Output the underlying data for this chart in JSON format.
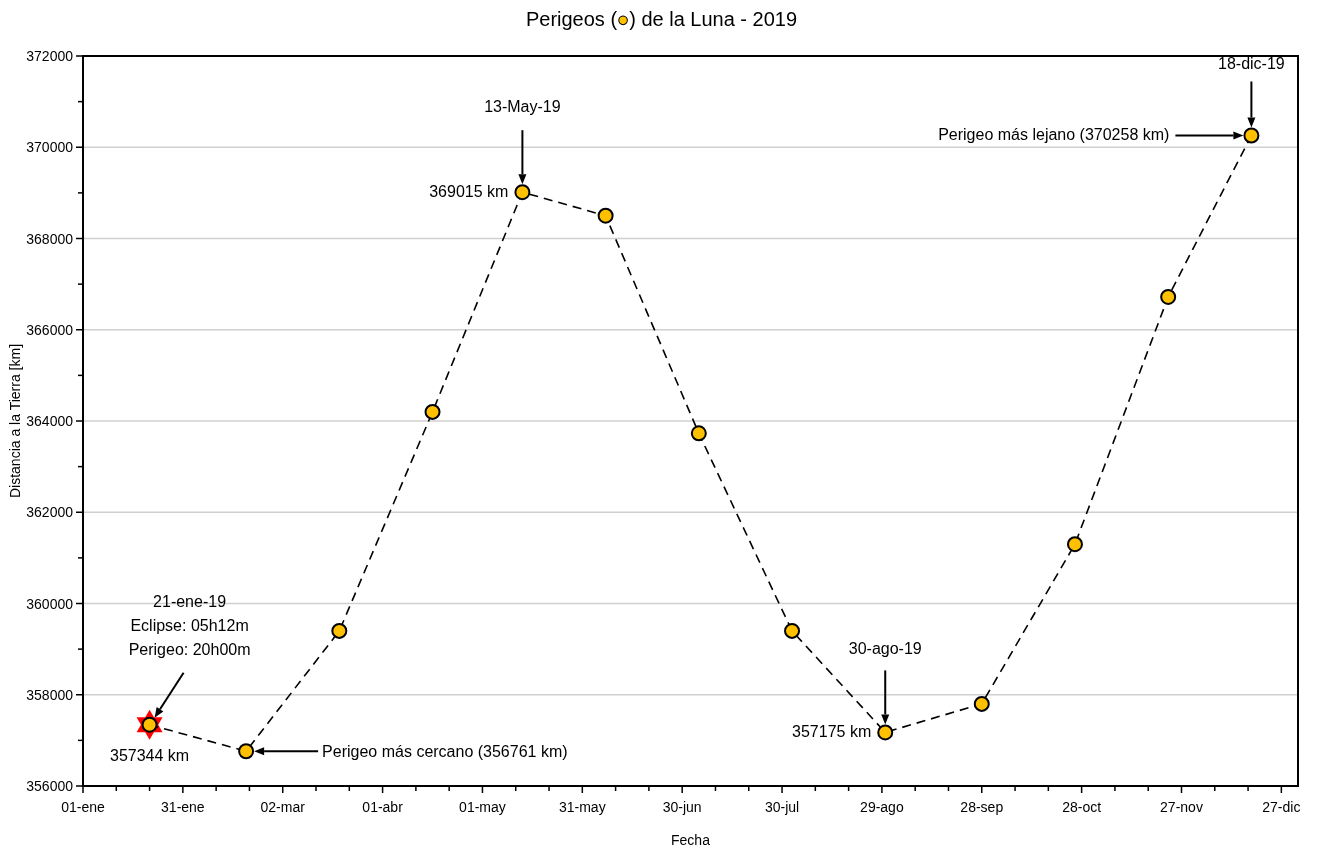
{
  "chart_data": {
    "type": "line",
    "title": "Perigeos (●) de la Luna - 2019",
    "xlabel": "Fecha",
    "ylabel": "Distancia a la Tierra [km]",
    "x": [
      "2019-01-21",
      "2019-02-19",
      "2019-03-19",
      "2019-04-16",
      "2019-05-13",
      "2019-06-07",
      "2019-07-05",
      "2019-08-02",
      "2019-08-30",
      "2019-09-28",
      "2019-10-26",
      "2019-11-23",
      "2019-12-18"
    ],
    "series": [
      {
        "color": "#ffc000",
        "values": [
          357344,
          356761,
          359400,
          364200,
          369015,
          368500,
          363730,
          359400,
          357175,
          357800,
          361300,
          366720,
          370258
        ]
      }
    ],
    "xlim": [
      "2019-01-01",
      "2020-01-01"
    ],
    "xticks": [
      {
        "value": "2019-01-01",
        "label": "01-ene"
      },
      {
        "value": "2019-01-11",
        "label": null
      },
      {
        "value": "2019-01-21",
        "label": null
      },
      {
        "value": "2019-01-31",
        "label": "31-ene"
      },
      {
        "value": "2019-02-10",
        "label": null
      },
      {
        "value": "2019-02-20",
        "label": null
      },
      {
        "value": "2019-03-02",
        "label": "02-mar"
      },
      {
        "value": "2019-03-12",
        "label": null
      },
      {
        "value": "2019-03-22",
        "label": null
      },
      {
        "value": "2019-04-01",
        "label": "01-abr"
      },
      {
        "value": "2019-04-11",
        "label": null
      },
      {
        "value": "2019-04-21",
        "label": null
      },
      {
        "value": "2019-05-01",
        "label": "01-may"
      },
      {
        "value": "2019-05-11",
        "label": null
      },
      {
        "value": "2019-05-21",
        "label": null
      },
      {
        "value": "2019-05-31",
        "label": "31-may"
      },
      {
        "value": "2019-06-10",
        "label": null
      },
      {
        "value": "2019-06-20",
        "label": null
      },
      {
        "value": "2019-06-30",
        "label": "30-jun"
      },
      {
        "value": "2019-07-10",
        "label": null
      },
      {
        "value": "2019-07-20",
        "label": null
      },
      {
        "value": "2019-07-30",
        "label": "30-jul"
      },
      {
        "value": "2019-08-09",
        "label": null
      },
      {
        "value": "2019-08-19",
        "label": null
      },
      {
        "value": "2019-08-29",
        "label": "29-ago"
      },
      {
        "value": "2019-09-08",
        "label": null
      },
      {
        "value": "2019-09-18",
        "label": null
      },
      {
        "value": "2019-09-28",
        "label": "28-sep"
      },
      {
        "value": "2019-10-08",
        "label": null
      },
      {
        "value": "2019-10-18",
        "label": null
      },
      {
        "value": "2019-10-28",
        "label": "28-oct"
      },
      {
        "value": "2019-11-07",
        "label": null
      },
      {
        "value": "2019-11-17",
        "label": null
      },
      {
        "value": "2019-11-27",
        "label": "27-nov"
      },
      {
        "value": "2019-12-07",
        "label": null
      },
      {
        "value": "2019-12-17",
        "label": null
      },
      {
        "value": "2019-12-27",
        "label": "27-dic"
      }
    ],
    "ylim": [
      356000,
      372000
    ],
    "yticks": [
      356000,
      {
        "value": 357000,
        "label": null
      },
      358000,
      {
        "value": 359000,
        "label": null
      },
      360000,
      {
        "value": 361000,
        "label": null
      },
      362000,
      {
        "value": 363000,
        "label": null
      },
      364000,
      {
        "value": 365000,
        "label": null
      },
      366000,
      {
        "value": 367000,
        "label": null
      },
      368000,
      {
        "value": 369000,
        "label": null
      },
      370000,
      {
        "value": 371000,
        "label": null
      },
      372000
    ],
    "grid": "y",
    "marker": "circle",
    "line_style": "dashed",
    "annotations": [
      "21-ene-19\nEclipse: 05h12m\nPerigeo: 20h00m",
      {
        "text": "357344 km",
        "x": "2019-01-21",
        "y": 357344
      },
      "Perigeo más cercano (356761 km)",
      "13-May-19",
      {
        "text": "369015 km",
        "x": "2019-05-13",
        "y": 369015
      },
      "30-ago-19",
      {
        "text": "357175 km",
        "x": "2019-08-30",
        "y": 357175
      },
      "18-dic-19",
      "Perigeo más lejano (370258 km)"
    ]
  }
}
